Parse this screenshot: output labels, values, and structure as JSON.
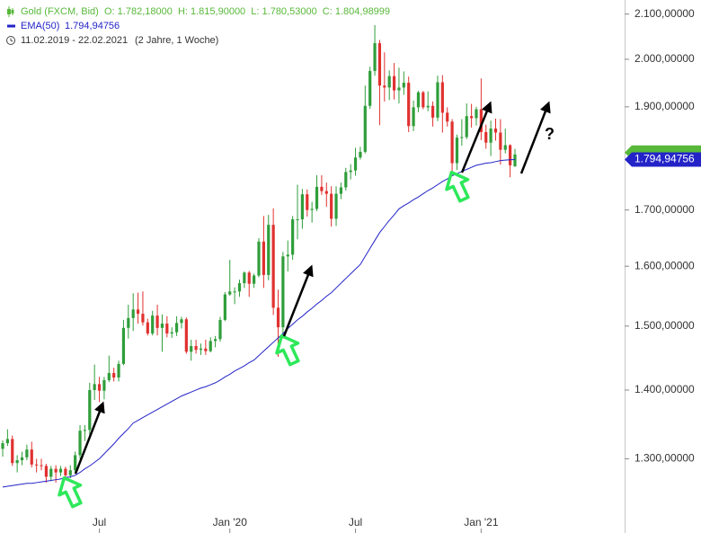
{
  "chart_data": {
    "type": "candlestick",
    "ohlc_label": "O: 1.782,18000  H: 1.815,90000  L: 1.780,53000  C: 1.804,98999",
    "period": "11.02.2019 - 22.02.2021",
    "period_length": "(2 Jahre, 1 Woche)",
    "log_scale": true,
    "grid": false,
    "ylim": [
      1200,
      2132
    ],
    "yticks": [
      {
        "value": 1300,
        "label": "1.300,00000"
      },
      {
        "value": 1400,
        "label": "1.400,00000"
      },
      {
        "value": 1500,
        "label": "1.500,00000"
      },
      {
        "value": 1600,
        "label": "1.600,00000"
      },
      {
        "value": 1700,
        "label": "1.700,00000"
      },
      {
        "value": 1900,
        "label": "1.900,00000"
      },
      {
        "value": 2000,
        "label": "2.000,00000"
      },
      {
        "value": 2100,
        "label": "2.100,00000"
      }
    ],
    "categories": [
      null,
      null,
      null,
      null,
      null,
      null,
      null,
      null,
      null,
      null,
      null,
      null,
      null,
      null,
      null,
      null,
      null,
      null,
      null,
      null,
      "Jul",
      null,
      null,
      null,
      null,
      null,
      null,
      null,
      null,
      null,
      null,
      null,
      null,
      null,
      null,
      null,
      null,
      null,
      null,
      null,
      null,
      null,
      null,
      null,
      null,
      null,
      null,
      "Jan '20",
      null,
      null,
      null,
      null,
      null,
      null,
      null,
      null,
      null,
      null,
      null,
      null,
      null,
      null,
      null,
      null,
      null,
      null,
      null,
      null,
      null,
      null,
      null,
      null,
      null,
      "Jul",
      null,
      null,
      null,
      null,
      null,
      null,
      null,
      null,
      null,
      null,
      null,
      null,
      null,
      null,
      null,
      null,
      null,
      null,
      null,
      null,
      null,
      null,
      null,
      null,
      null,
      "Jan '21",
      null,
      null,
      null,
      null,
      null,
      null,
      null
    ],
    "series": [
      {
        "name": "Gold (FXCM, Bid)",
        "type": "candlestick",
        "up_color": "#2f9e3a",
        "down_color": "#e0312f",
        "header_color": "#58b83a",
        "open": [
          1314,
          1322,
          1328,
          1294,
          1298,
          1302,
          1313,
          1292,
          1291,
          1290,
          1275,
          1286,
          1281,
          1286,
          1277,
          1284,
          1305,
          1340,
          1341,
          1400,
          1409,
          1399,
          1415,
          1426,
          1419,
          1440,
          1497,
          1513,
          1527,
          1520,
          1506,
          1488,
          1517,
          1497,
          1504,
          1488,
          1490,
          1505,
          1511,
          1459,
          1468,
          1462,
          1464,
          1460,
          1476,
          1479,
          1510,
          1552,
          1557,
          1557,
          1571,
          1589,
          1570,
          1584,
          1643,
          1585,
          1673,
          1530,
          1498,
          1617,
          1620,
          1683,
          1683,
          1729,
          1700,
          1702,
          1743,
          1735,
          1730,
          1684,
          1730,
          1742,
          1771,
          1774,
          1799,
          1810,
          1902,
          1975,
          2035,
          1944,
          1940,
          1964,
          1934,
          1940,
          1950,
          1861,
          1899,
          1930,
          1899,
          1902,
          1878,
          1951,
          1888,
          1870,
          1788,
          1838,
          1839,
          1881,
          1877,
          1895,
          1849,
          1828,
          1856,
          1848,
          1814,
          1823,
          1782.18
        ],
        "high": [
          1326,
          1342,
          1333,
          1305,
          1310,
          1320,
          1324,
          1300,
          1300,
          1293,
          1290,
          1291,
          1290,
          1289,
          1291,
          1310,
          1348,
          1348,
          1411,
          1439,
          1420,
          1420,
          1453,
          1434,
          1445,
          1510,
          1535,
          1554,
          1555,
          1557,
          1512,
          1525,
          1535,
          1519,
          1516,
          1498,
          1516,
          1515,
          1514,
          1478,
          1478,
          1472,
          1478,
          1482,
          1484,
          1515,
          1556,
          1611,
          1564,
          1577,
          1591,
          1592,
          1587,
          1649,
          1689,
          1691,
          1703,
          1560,
          1625,
          1645,
          1689,
          1747,
          1739,
          1738,
          1715,
          1765,
          1765,
          1751,
          1744,
          1744,
          1751,
          1779,
          1786,
          1818,
          1820,
          1944,
          1984,
          2075,
          2042,
          2015,
          1976,
          1992,
          1982,
          1974,
          1963,
          1913,
          1933,
          1933,
          1932,
          1911,
          1965,
          1966,
          1899,
          1875,
          1844,
          1875,
          1907,
          1906,
          1900,
          1959,
          1864,
          1872,
          1876,
          1875,
          1856,
          1825,
          1815.9
        ],
        "low": [
          1303,
          1318,
          1290,
          1281,
          1291,
          1298,
          1288,
          1281,
          1284,
          1267,
          1269,
          1267,
          1276,
          1270,
          1273,
          1279,
          1300,
          1325,
          1330,
          1385,
          1382,
          1386,
          1412,
          1413,
          1413,
          1438,
          1480,
          1492,
          1504,
          1501,
          1485,
          1485,
          1485,
          1459,
          1482,
          1481,
          1484,
          1496,
          1456,
          1445,
          1456,
          1454,
          1454,
          1458,
          1466,
          1475,
          1508,
          1550,
          1536,
          1548,
          1563,
          1548,
          1563,
          1581,
          1563,
          1576,
          1518,
          1451,
          1482,
          1591,
          1611,
          1647,
          1666,
          1688,
          1677,
          1698,
          1728,
          1706,
          1670,
          1671,
          1720,
          1736,
          1757,
          1764,
          1795,
          1807,
          1896,
          1965,
          1863,
          1911,
          1914,
          1915,
          1907,
          1925,
          1849,
          1851,
          1889,
          1895,
          1891,
          1860,
          1871,
          1848,
          1860,
          1764,
          1775,
          1822,
          1835,
          1858,
          1862,
          1833,
          1816,
          1802,
          1832,
          1785,
          1807,
          1761,
          1780.53
        ],
        "close": [
          1322,
          1328,
          1294,
          1298,
          1302,
          1313,
          1292,
          1291,
          1290,
          1275,
          1286,
          1281,
          1286,
          1277,
          1284,
          1305,
          1340,
          1341,
          1400,
          1409,
          1399,
          1415,
          1426,
          1419,
          1440,
          1497,
          1513,
          1527,
          1520,
          1506,
          1488,
          1517,
          1497,
          1504,
          1488,
          1490,
          1505,
          1511,
          1459,
          1468,
          1462,
          1464,
          1460,
          1476,
          1479,
          1510,
          1552,
          1557,
          1557,
          1571,
          1589,
          1570,
          1584,
          1643,
          1585,
          1673,
          1530,
          1498,
          1617,
          1620,
          1683,
          1683,
          1729,
          1700,
          1702,
          1743,
          1735,
          1730,
          1684,
          1730,
          1742,
          1771,
          1774,
          1799,
          1810,
          1902,
          1975,
          2035,
          1944,
          1940,
          1964,
          1934,
          1940,
          1950,
          1861,
          1899,
          1930,
          1899,
          1902,
          1878,
          1951,
          1888,
          1870,
          1788,
          1838,
          1839,
          1881,
          1877,
          1895,
          1849,
          1828,
          1856,
          1848,
          1814,
          1823,
          1784,
          1804.98999
        ]
      },
      {
        "name": "EMA(50)",
        "type": "line",
        "color": "#2323c8",
        "last_value_label": "1.794,94756",
        "values": [
          1261,
          1262,
          1263,
          1264,
          1265,
          1266,
          1266,
          1267,
          1268,
          1269,
          1270,
          1271,
          1272,
          1274,
          1275,
          1277,
          1281,
          1286,
          1290,
          1295,
          1300,
          1307,
          1314,
          1321,
          1329,
          1336,
          1343,
          1351,
          1355,
          1359,
          1363,
          1367,
          1371,
          1375,
          1379,
          1383,
          1387,
          1391,
          1394,
          1397,
          1400,
          1403,
          1405,
          1408,
          1411,
          1415,
          1420,
          1424,
          1429,
          1433,
          1437,
          1442,
          1446,
          1453,
          1460,
          1467,
          1474,
          1481,
          1488,
          1496,
          1503,
          1510,
          1516,
          1523,
          1529,
          1536,
          1542,
          1549,
          1555,
          1563,
          1571,
          1579,
          1587,
          1595,
          1603,
          1617,
          1631,
          1645,
          1659,
          1670,
          1681,
          1691,
          1702,
          1708,
          1713,
          1719,
          1724,
          1730,
          1736,
          1741,
          1747,
          1753,
          1758,
          1764,
          1768,
          1772,
          1776,
          1780,
          1784,
          1786,
          1788,
          1789,
          1791,
          1793,
          1794,
          1794.5,
          1794.94756
        ]
      }
    ]
  }
}
